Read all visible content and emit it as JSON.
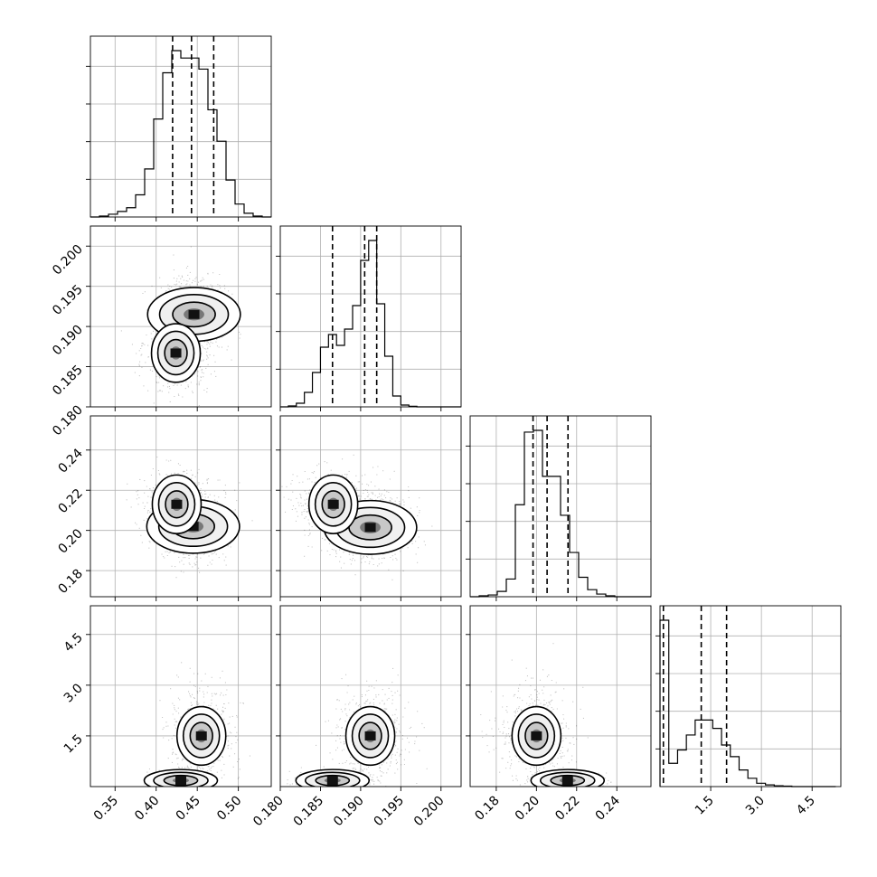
{
  "chart_data": {
    "type": "corner",
    "variables": [
      {
        "range": [
          0.32,
          0.54
        ],
        "ticks": [
          0.35,
          0.4,
          0.45,
          0.5
        ],
        "tick_labels": [
          "0.35",
          "0.40",
          "0.45",
          "0.50"
        ],
        "quantiles": [
          0.42,
          0.443,
          0.47
        ],
        "hist": {
          "edges": [
            0.32,
            0.331,
            0.342,
            0.353,
            0.364,
            0.375,
            0.386,
            0.397,
            0.408,
            0.419,
            0.43,
            0.441,
            0.452,
            0.463,
            0.474,
            0.485,
            0.496,
            0.507,
            0.518,
            0.529,
            0.54
          ],
          "counts": [
            0,
            0.5,
            1.5,
            3,
            5,
            12,
            26,
            53,
            78,
            90,
            86,
            86,
            80,
            58,
            41,
            20,
            7,
            2,
            0.5,
            0
          ]
        }
      },
      {
        "range": [
          0.18,
          0.2025
        ],
        "ticks": [
          0.18,
          0.185,
          0.19,
          0.195,
          0.2
        ],
        "tick_labels": [
          "0.180",
          "0.185",
          "0.190",
          "0.195",
          "0.200"
        ],
        "quantiles": [
          0.1865,
          0.1905,
          0.192
        ],
        "hist": {
          "edges": [
            0.18,
            0.181,
            0.182,
            0.183,
            0.184,
            0.185,
            0.186,
            0.187,
            0.188,
            0.189,
            0.19,
            0.191,
            0.192,
            0.193,
            0.194,
            0.195,
            0.196,
            0.197,
            0.198,
            0.199,
            0.2,
            0.201,
            0.2025
          ],
          "counts": [
            0,
            0.5,
            2,
            8,
            19,
            33,
            40,
            34,
            43,
            56,
            81,
            92,
            57,
            28,
            6,
            1,
            0.3,
            0,
            0,
            0,
            0,
            0
          ]
        }
      },
      {
        "range": [
          0.167,
          0.257
        ],
        "ticks": [
          0.18,
          0.2,
          0.22,
          0.24
        ],
        "tick_labels": [
          "0.18",
          "0.20",
          "0.22",
          "0.24"
        ],
        "quantiles": [
          0.1983,
          0.2053,
          0.2157
        ],
        "hist": {
          "edges": [
            0.167,
            0.1715,
            0.176,
            0.1805,
            0.185,
            0.1895,
            0.194,
            0.1985,
            0.203,
            0.2075,
            0.212,
            0.2165,
            0.221,
            0.2255,
            0.23,
            0.2345,
            0.239,
            0.2435,
            0.248,
            0.2525,
            0.257
          ],
          "counts": [
            0,
            0.5,
            1,
            3,
            10,
            52,
            93,
            94,
            68,
            68,
            46,
            25,
            11,
            4,
            1.5,
            0.5,
            0,
            0,
            0,
            0
          ]
        }
      },
      {
        "range": [
          0.0,
          5.35
        ],
        "ticks": [
          1.5,
          3.0,
          4.5
        ],
        "tick_labels": [
          "1.5",
          "3.0",
          "4.5"
        ],
        "quantiles": [
          0.1,
          1.22,
          1.97
        ],
        "hist": {
          "edges": [
            0.0,
            0.26,
            0.52,
            0.78,
            1.04,
            1.3,
            1.56,
            1.82,
            2.08,
            2.34,
            2.6,
            2.86,
            3.12,
            3.38,
            3.64,
            3.9,
            4.16,
            4.42,
            4.68,
            4.94,
            5.2
          ],
          "counts": [
            100,
            14,
            22,
            31,
            40,
            40,
            35,
            25,
            18,
            10,
            5,
            2,
            1,
            0.5,
            0.3,
            0,
            0,
            0,
            0,
            0
          ]
        },
        "y_tick_labels": [
          "1.5",
          "3.0",
          "4.5"
        ]
      }
    ],
    "y_axis_tick_labels": {
      "row2": [
        "0.180",
        "0.185",
        "0.190",
        "0.195",
        "0.200"
      ],
      "row3": [
        "0.18",
        "0.20",
        "0.22",
        "0.24"
      ],
      "row4": [
        "1.5",
        "3.0",
        "4.5"
      ]
    },
    "scatter_modes": {
      "1_0": [
        [
          0.446,
          0.1915,
          1.0
        ],
        [
          0.424,
          0.1867,
          0.55
        ]
      ],
      "2_0": [
        [
          0.445,
          0.202,
          1.0
        ],
        [
          0.425,
          0.213,
          0.7
        ]
      ],
      "2_1": [
        [
          0.1912,
          0.2015,
          1.0
        ],
        [
          0.1866,
          0.213,
          0.6
        ]
      ],
      "3_0": [
        [
          0.43,
          0.18,
          1.0
        ],
        [
          0.455,
          1.5,
          0.55
        ]
      ],
      "3_1": [
        [
          0.1865,
          0.18,
          1.0
        ],
        [
          0.1912,
          1.5,
          0.55
        ]
      ],
      "3_2": [
        [
          0.2155,
          0.18,
          1.0
        ],
        [
          0.2,
          1.5,
          0.55
        ]
      ]
    },
    "grid": true,
    "quantile_lines": "dashed"
  }
}
